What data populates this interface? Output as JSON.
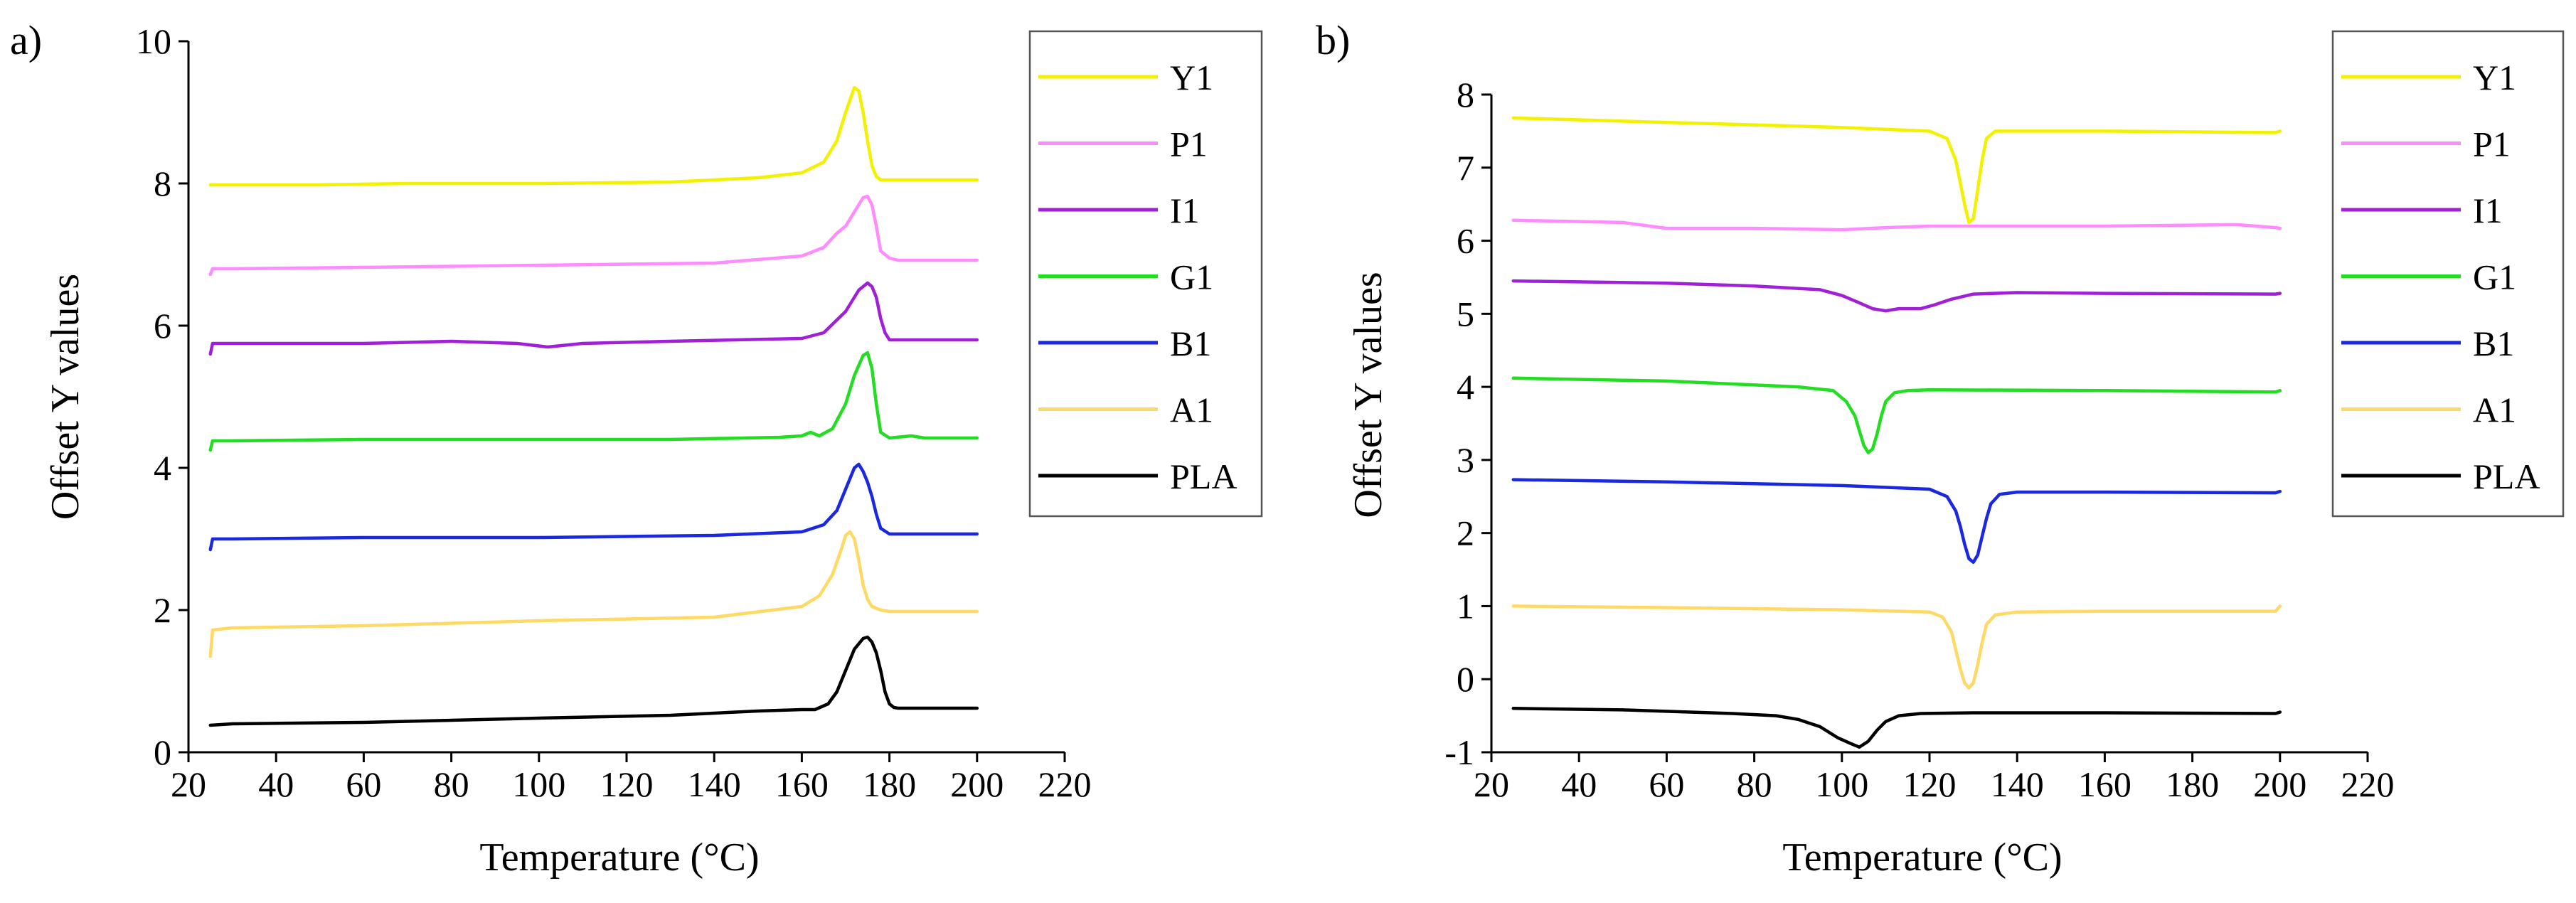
{
  "figure": {
    "panel_labels": [
      "a)",
      "b)"
    ]
  },
  "chart_data": [
    {
      "type": "line",
      "panel": "a)",
      "xlabel": "Temperature (°C)",
      "ylabel": "Offset Y values",
      "xlim": [
        20,
        220
      ],
      "ylim": [
        0,
        10
      ],
      "xticks": [
        20,
        40,
        60,
        80,
        100,
        120,
        140,
        160,
        180,
        200,
        220
      ],
      "yticks": [
        0,
        2,
        4,
        6,
        8,
        10
      ],
      "legend": "top-right, outside plot",
      "series": [
        {
          "name": "Y1",
          "color": "#f2f200",
          "x": [
            25,
            30,
            50,
            70,
            100,
            130,
            150,
            160,
            165,
            168,
            170,
            172,
            173,
            174,
            175,
            176,
            177,
            178,
            180,
            200
          ],
          "y": [
            7.98,
            7.98,
            7.98,
            8.0,
            8.0,
            8.02,
            8.08,
            8.15,
            8.3,
            8.6,
            9.0,
            9.35,
            9.3,
            9.0,
            8.6,
            8.25,
            8.1,
            8.05,
            8.05,
            8.05
          ]
        },
        {
          "name": "P1",
          "color": "#ff8cff",
          "x": [
            25,
            25.5,
            30,
            60,
            100,
            140,
            160,
            165,
            168,
            170,
            172,
            174,
            175,
            176,
            177,
            178,
            180,
            182,
            200
          ],
          "y": [
            6.72,
            6.8,
            6.8,
            6.82,
            6.85,
            6.88,
            6.98,
            7.1,
            7.3,
            7.4,
            7.6,
            7.8,
            7.82,
            7.7,
            7.4,
            7.05,
            6.95,
            6.92,
            6.92
          ]
        },
        {
          "name": "I1",
          "color": "#a020d8",
          "x": [
            25,
            25.5,
            30,
            60,
            80,
            95,
            102,
            110,
            130,
            160,
            165,
            170,
            173,
            175,
            176,
            177,
            178,
            179,
            180,
            200
          ],
          "y": [
            5.6,
            5.75,
            5.75,
            5.75,
            5.78,
            5.75,
            5.7,
            5.75,
            5.78,
            5.82,
            5.9,
            6.2,
            6.5,
            6.6,
            6.55,
            6.4,
            6.1,
            5.9,
            5.8,
            5.8
          ]
        },
        {
          "name": "G1",
          "color": "#22dd22",
          "x": [
            25,
            25.5,
            30,
            60,
            100,
            130,
            155,
            160,
            162,
            164,
            167,
            170,
            172,
            174,
            175,
            176,
            177,
            178,
            180,
            185,
            188,
            200
          ],
          "y": [
            4.25,
            4.38,
            4.38,
            4.4,
            4.4,
            4.4,
            4.43,
            4.45,
            4.5,
            4.45,
            4.55,
            4.9,
            5.3,
            5.58,
            5.62,
            5.4,
            4.9,
            4.5,
            4.42,
            4.45,
            4.42,
            4.42
          ]
        },
        {
          "name": "B1",
          "color": "#1a28e0",
          "x": [
            25,
            25.5,
            30,
            60,
            100,
            140,
            160,
            165,
            168,
            170,
            172,
            173,
            174,
            175,
            176,
            177,
            178,
            180,
            200
          ],
          "y": [
            2.85,
            3.0,
            3.0,
            3.02,
            3.02,
            3.05,
            3.1,
            3.2,
            3.4,
            3.7,
            4.0,
            4.05,
            3.95,
            3.8,
            3.6,
            3.35,
            3.15,
            3.07,
            3.07
          ]
        },
        {
          "name": "A1",
          "color": "#ffd966",
          "x": [
            25,
            25.5,
            30,
            60,
            100,
            140,
            160,
            164,
            167,
            169,
            170,
            171,
            172,
            173,
            174,
            175,
            176,
            178,
            180,
            200
          ],
          "y": [
            1.35,
            1.72,
            1.75,
            1.78,
            1.85,
            1.9,
            2.05,
            2.2,
            2.5,
            2.85,
            3.05,
            3.1,
            3.0,
            2.7,
            2.35,
            2.15,
            2.05,
            2.0,
            1.98,
            1.98
          ]
        },
        {
          "name": "PLA",
          "color": "#000000",
          "x": [
            25,
            30,
            60,
            100,
            130,
            150,
            160,
            163,
            166,
            168,
            170,
            172,
            174,
            175,
            176,
            177,
            178,
            179,
            180,
            181,
            182,
            200
          ],
          "y": [
            0.38,
            0.4,
            0.42,
            0.48,
            0.52,
            0.58,
            0.6,
            0.6,
            0.68,
            0.85,
            1.15,
            1.45,
            1.6,
            1.62,
            1.55,
            1.4,
            1.15,
            0.85,
            0.68,
            0.63,
            0.62,
            0.62
          ]
        }
      ]
    },
    {
      "type": "line",
      "panel": "b)",
      "xlabel": "Temperature (°C)",
      "ylabel": "Offset Y values",
      "xlim": [
        20,
        220
      ],
      "ylim": [
        -1,
        8
      ],
      "xticks": [
        20,
        40,
        60,
        80,
        100,
        120,
        140,
        160,
        180,
        200,
        220
      ],
      "yticks": [
        -1,
        0,
        1,
        2,
        3,
        4,
        5,
        6,
        7,
        8
      ],
      "legend": "top-right, outside plot",
      "series": [
        {
          "name": "Y1",
          "color": "#f2f200",
          "x": [
            25,
            60,
            100,
            120,
            124,
            126,
            127,
            128,
            129,
            130,
            131,
            132,
            133,
            135,
            140,
            160,
            199,
            200
          ],
          "y": [
            7.68,
            7.62,
            7.55,
            7.5,
            7.4,
            7.1,
            6.8,
            6.5,
            6.25,
            6.3,
            6.7,
            7.1,
            7.4,
            7.5,
            7.5,
            7.5,
            7.48,
            7.5
          ]
        },
        {
          "name": "P1",
          "color": "#ff8cff",
          "x": [
            25,
            50,
            60,
            80,
            100,
            110,
            120,
            140,
            160,
            190,
            199,
            200
          ],
          "y": [
            6.28,
            6.25,
            6.17,
            6.17,
            6.15,
            6.18,
            6.2,
            6.2,
            6.2,
            6.22,
            6.18,
            6.17
          ]
        },
        {
          "name": "I1",
          "color": "#a020d8",
          "x": [
            25,
            60,
            80,
            95,
            100,
            104,
            107,
            110,
            113,
            116,
            118,
            121,
            125,
            130,
            140,
            160,
            199,
            200
          ],
          "y": [
            5.45,
            5.42,
            5.38,
            5.33,
            5.25,
            5.15,
            5.07,
            5.04,
            5.07,
            5.07,
            5.07,
            5.12,
            5.2,
            5.27,
            5.29,
            5.28,
            5.27,
            5.28
          ]
        },
        {
          "name": "G1",
          "color": "#22dd22",
          "x": [
            25,
            60,
            90,
            98,
            101,
            103,
            104,
            105,
            106,
            107,
            108,
            109,
            110,
            112,
            115,
            120,
            160,
            199,
            200
          ],
          "y": [
            4.12,
            4.08,
            4.0,
            3.95,
            3.8,
            3.6,
            3.4,
            3.2,
            3.1,
            3.15,
            3.35,
            3.6,
            3.8,
            3.92,
            3.95,
            3.96,
            3.95,
            3.93,
            3.95
          ]
        },
        {
          "name": "B1",
          "color": "#1a28e0",
          "x": [
            25,
            60,
            100,
            120,
            124,
            126,
            127,
            128,
            129,
            130,
            131,
            132,
            133,
            134,
            136,
            140,
            160,
            199,
            200
          ],
          "y": [
            2.73,
            2.7,
            2.65,
            2.6,
            2.5,
            2.3,
            2.1,
            1.85,
            1.65,
            1.6,
            1.7,
            1.95,
            2.2,
            2.4,
            2.53,
            2.56,
            2.56,
            2.55,
            2.57
          ]
        },
        {
          "name": "A1",
          "color": "#ffd966",
          "x": [
            25,
            60,
            100,
            120,
            123,
            125,
            126,
            127,
            128,
            129,
            130,
            131,
            132,
            133,
            135,
            140,
            160,
            199,
            200
          ],
          "y": [
            1.0,
            0.98,
            0.95,
            0.92,
            0.85,
            0.65,
            0.4,
            0.15,
            -0.05,
            -0.12,
            -0.05,
            0.2,
            0.5,
            0.75,
            0.88,
            0.92,
            0.93,
            0.93,
            1.0
          ]
        },
        {
          "name": "PLA",
          "color": "#000000",
          "x": [
            25,
            50,
            75,
            85,
            90,
            95,
            99,
            102,
            104,
            106,
            108,
            110,
            113,
            118,
            130,
            160,
            199,
            200
          ],
          "y": [
            -0.4,
            -0.42,
            -0.47,
            -0.5,
            -0.55,
            -0.65,
            -0.8,
            -0.88,
            -0.93,
            -0.85,
            -0.7,
            -0.58,
            -0.5,
            -0.47,
            -0.46,
            -0.46,
            -0.47,
            -0.45
          ]
        }
      ]
    }
  ]
}
